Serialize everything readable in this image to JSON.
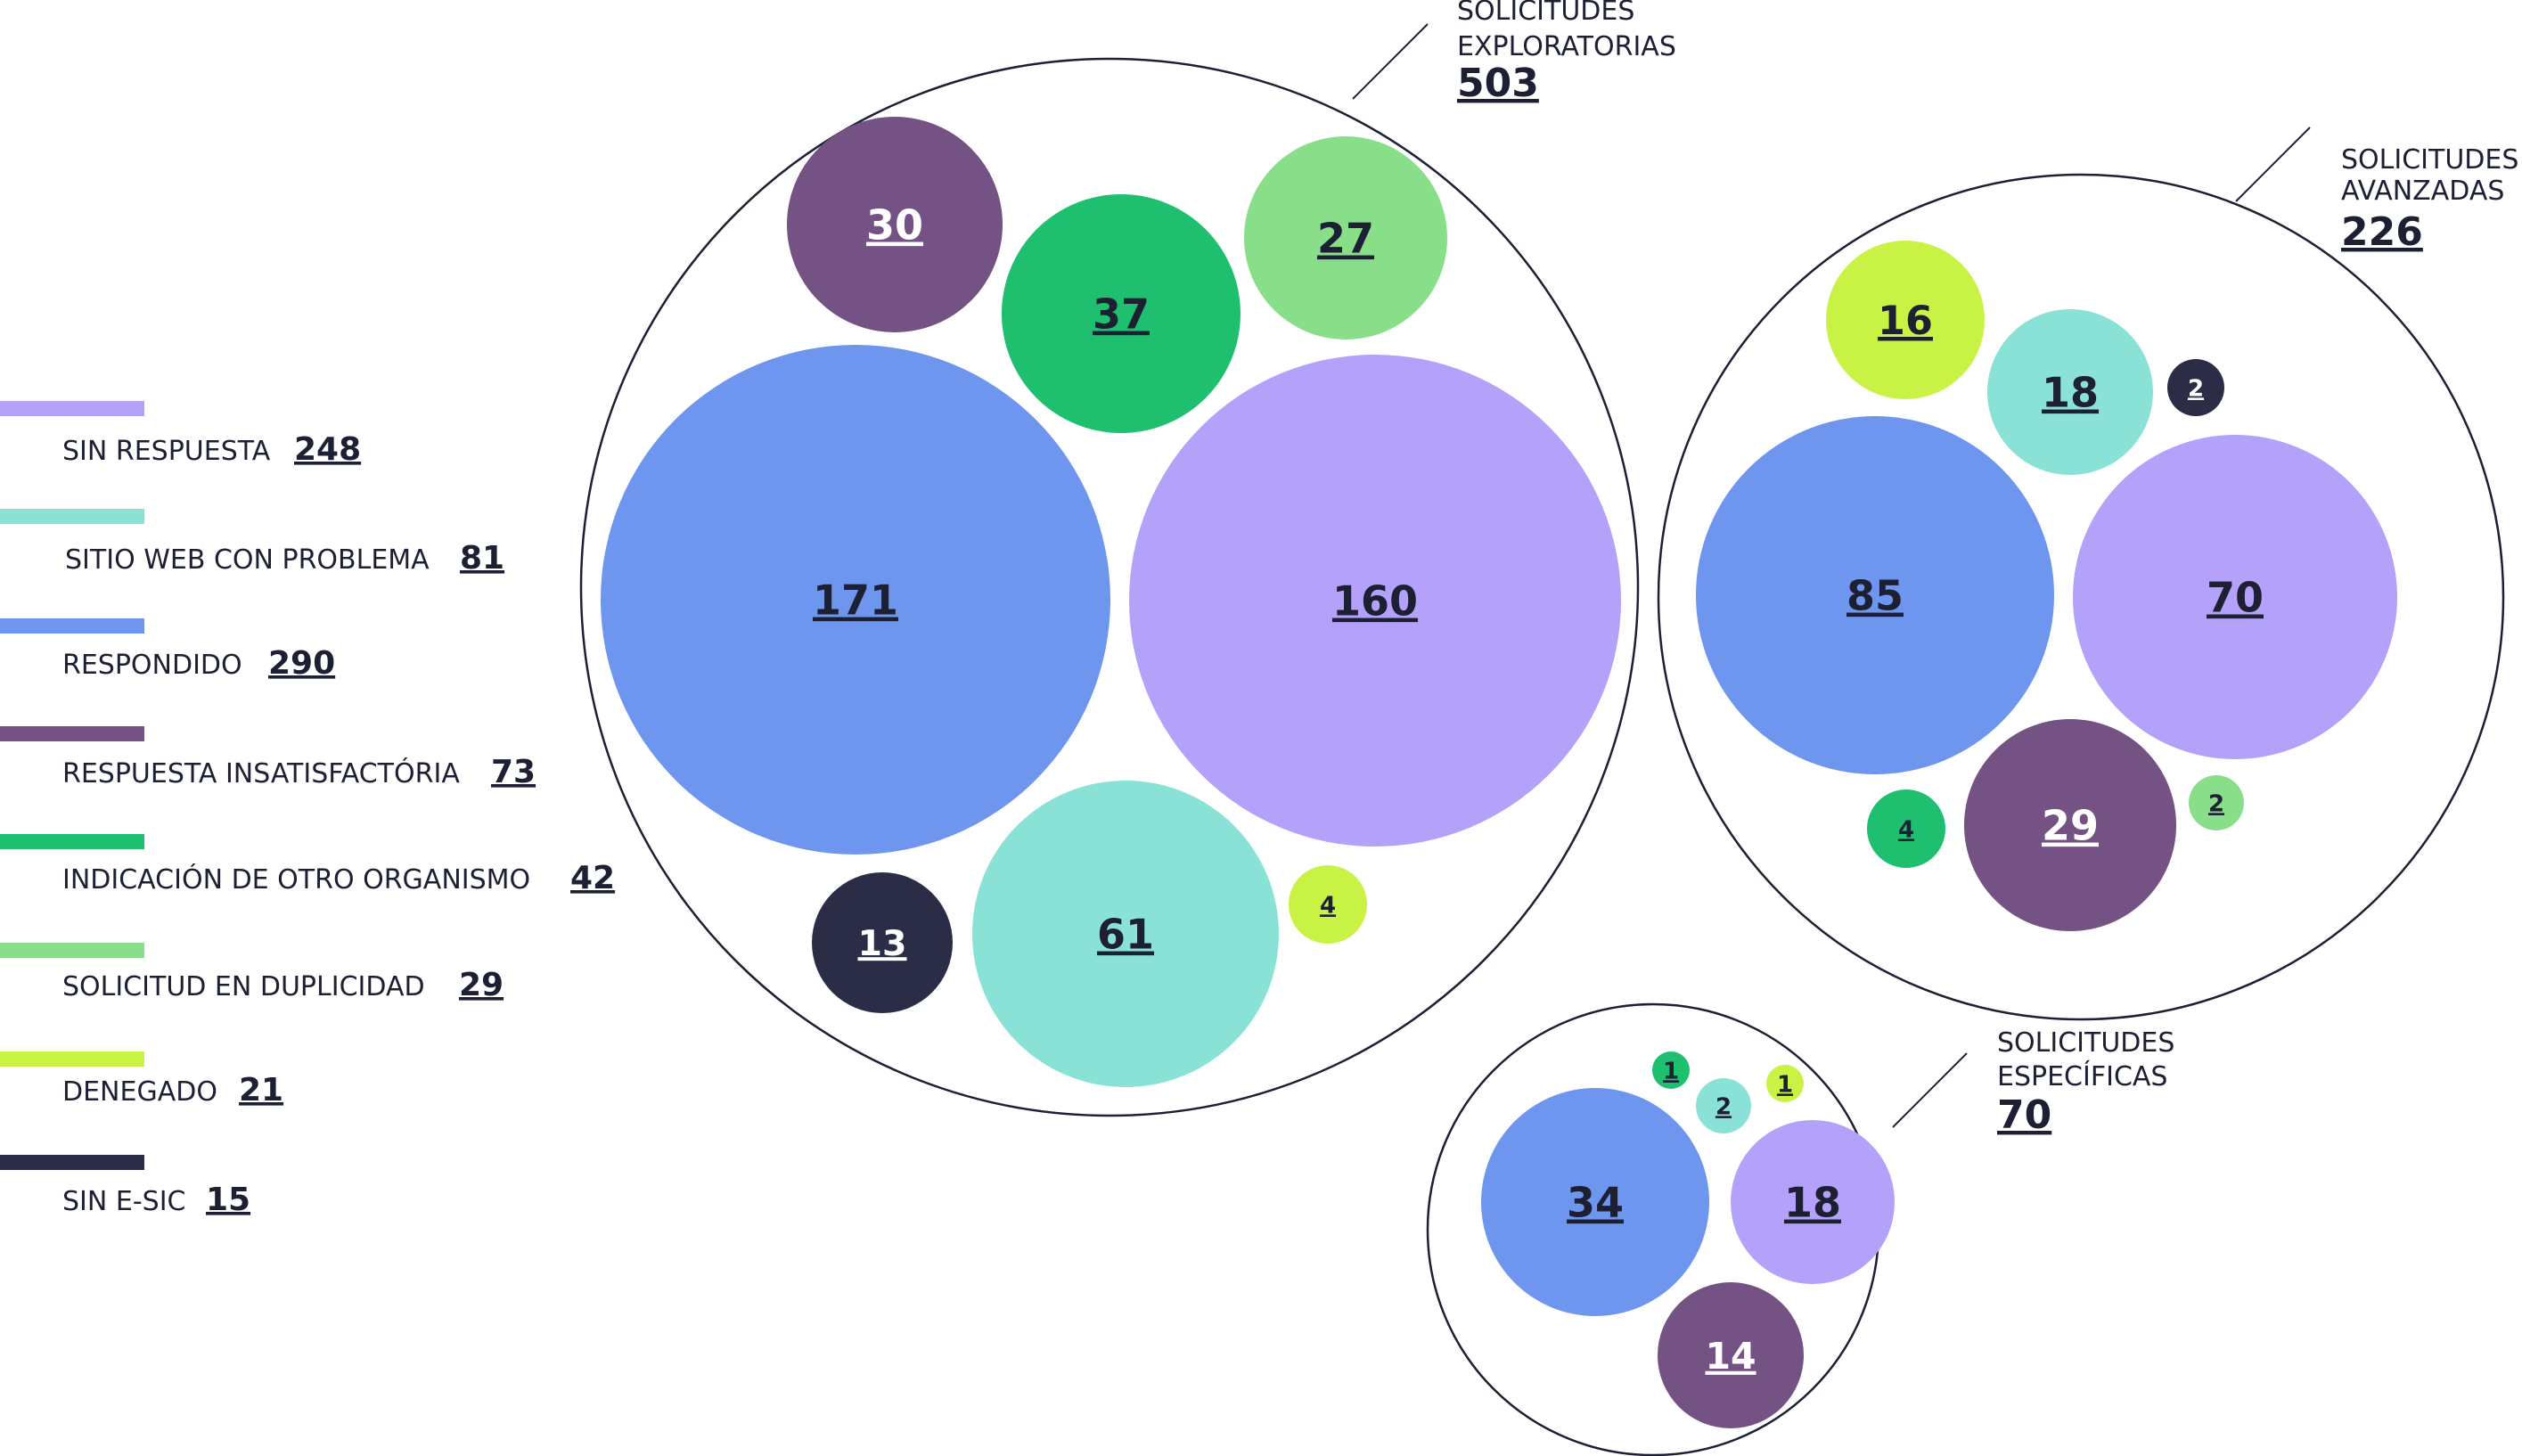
{
  "chart_data": {
    "type": "bubble",
    "categories": [
      {
        "key": "sin_respuesta",
        "label": "SIN RESPUESTA",
        "total": "248",
        "color": "#b3a1fa"
      },
      {
        "key": "sitio_web",
        "label": "SITIO WEB CON PROBLEMA",
        "total": "81",
        "color": "#8ae2d6"
      },
      {
        "key": "respondido",
        "label": "RESPONDIDO",
        "total": "290",
        "color": "#6e96ee"
      },
      {
        "key": "insatisfactoria",
        "label": "RESPUESTA INSATISFACTÓRIA",
        "total": "73",
        "color": "#745283"
      },
      {
        "key": "otro_organismo",
        "label": "INDICACIÓN DE OTRO ORGANISMO",
        "total": "42",
        "color": "#1fbf70"
      },
      {
        "key": "duplicidad",
        "label": "SOLICITUD EN DUPLICIDAD",
        "total": "29",
        "color": "#89df89"
      },
      {
        "key": "denegado",
        "label": "DENEGADO",
        "total": "21",
        "color": "#c8f244"
      },
      {
        "key": "sin_esic",
        "label": "SIN E-SIC",
        "total": "15",
        "color": "#2a2d45"
      }
    ],
    "groups": [
      {
        "title_line1": "SOLICITUDES",
        "title_line2": "EXPLORATORIAS",
        "total": "503",
        "values": {
          "sin_respuesta": "160",
          "sitio_web": "61",
          "respondido": "171",
          "insatisfactoria": "30",
          "otro_organismo": "37",
          "duplicidad": "27",
          "denegado": "4",
          "sin_esic": "13"
        }
      },
      {
        "title_line1": "SOLICITUDES",
        "title_line2": "AVANZADAS",
        "total": "226",
        "values": {
          "sin_respuesta": "70",
          "sitio_web": "18",
          "respondido": "85",
          "insatisfactoria": "29",
          "otro_organismo": "4",
          "duplicidad": "2",
          "denegado": "16",
          "sin_esic": "2"
        }
      },
      {
        "title_line1": "SOLICITUDES",
        "title_line2": "ESPECÍFICAS",
        "total": "70",
        "values": {
          "sin_respuesta": "18",
          "sitio_web": "2",
          "respondido": "34",
          "insatisfactoria": "14",
          "otro_organismo": "1",
          "denegado": "1"
        }
      }
    ]
  }
}
